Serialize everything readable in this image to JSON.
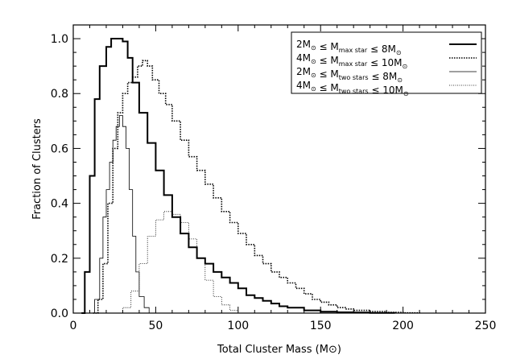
{
  "chart_data": {
    "type": "line",
    "xlabel": "Total Cluster Mass (M⊙)",
    "ylabel": "Fraction of Clusters",
    "xlim": [
      0,
      250
    ],
    "ylim": [
      0,
      1.05
    ],
    "xticks": [
      0,
      50,
      100,
      150,
      200,
      250
    ],
    "yticks": [
      0.0,
      0.2,
      0.4,
      0.6,
      0.8,
      1.0
    ],
    "xtick_labels": [
      "0",
      "50",
      "100",
      "150",
      "200",
      "250"
    ],
    "ytick_labels": [
      "0.0",
      "0.2",
      "0.4",
      "0.6",
      "0.8",
      "1.0"
    ],
    "legend_position": "top-right",
    "series": [
      {
        "name": "2M⊙ ≤ M_max star ≤ 8M⊙",
        "legend": {
          "lo": "2M",
          "sym": "⊙",
          "rel1": "≤",
          "m": "M",
          "sub": "max star",
          "rel2": "≤",
          "hi": "8M"
        },
        "style": "solid-thick",
        "x": [
          5,
          7,
          10,
          13,
          16,
          20,
          23,
          26,
          30,
          33,
          36,
          40,
          45,
          50,
          55,
          60,
          65,
          70,
          75,
          80,
          85,
          90,
          95,
          100,
          105,
          110,
          115,
          120,
          125,
          130,
          140,
          150,
          160,
          170,
          180,
          195
        ],
        "y": [
          0.0,
          0.15,
          0.5,
          0.78,
          0.9,
          0.97,
          1.0,
          1.0,
          0.99,
          0.93,
          0.84,
          0.73,
          0.62,
          0.52,
          0.43,
          0.35,
          0.29,
          0.24,
          0.2,
          0.18,
          0.15,
          0.13,
          0.11,
          0.09,
          0.065,
          0.055,
          0.045,
          0.035,
          0.025,
          0.02,
          0.01,
          0.005,
          0.003,
          0.002,
          0.001,
          0.0
        ]
      },
      {
        "name": "4M⊙ ≤ M_max star ≤ 10M⊙",
        "legend": {
          "lo": "4M",
          "sym": "⊙",
          "rel1": "≤",
          "m": "M",
          "sub": "max star",
          "rel2": "≤",
          "hi": "10M"
        },
        "style": "dotted-thick",
        "x": [
          12,
          15,
          18,
          21,
          24,
          27,
          30,
          33,
          36,
          39,
          42,
          45,
          48,
          52,
          56,
          60,
          65,
          70,
          75,
          80,
          85,
          90,
          95,
          100,
          105,
          110,
          115,
          120,
          125,
          130,
          135,
          140,
          145,
          150,
          155,
          160,
          165,
          170,
          180,
          190,
          200,
          210
        ],
        "y": [
          0.0,
          0.05,
          0.18,
          0.4,
          0.6,
          0.73,
          0.8,
          0.84,
          0.86,
          0.9,
          0.92,
          0.9,
          0.85,
          0.8,
          0.76,
          0.7,
          0.63,
          0.57,
          0.52,
          0.47,
          0.42,
          0.37,
          0.33,
          0.29,
          0.25,
          0.21,
          0.18,
          0.15,
          0.13,
          0.11,
          0.09,
          0.07,
          0.05,
          0.04,
          0.03,
          0.02,
          0.015,
          0.01,
          0.006,
          0.003,
          0.001,
          0.0
        ]
      },
      {
        "name": "2M⊙ ≤ M_two stars ≤ 8M⊙",
        "legend": {
          "lo": "2M",
          "sym": "⊙",
          "rel1": "≤",
          "m": "M",
          "sub": "two stars",
          "rel2": "≤",
          "hi": "8M"
        },
        "style": "solid-thin",
        "x": [
          10,
          13,
          16,
          18,
          20,
          22,
          24,
          26,
          28,
          30,
          32,
          34,
          36,
          38,
          40,
          43,
          46
        ],
        "y": [
          0.0,
          0.05,
          0.2,
          0.35,
          0.45,
          0.55,
          0.63,
          0.68,
          0.72,
          0.68,
          0.6,
          0.45,
          0.28,
          0.15,
          0.06,
          0.02,
          0.0
        ]
      },
      {
        "name": "4M⊙ ≤ M_two stars ≤ 10M⊙",
        "legend": {
          "lo": "4M",
          "sym": "⊙",
          "rel1": "≤",
          "m": "M",
          "sub": "two stars",
          "rel2": "≤",
          "hi": "10M"
        },
        "style": "dotted-thin",
        "x": [
          24,
          30,
          35,
          40,
          45,
          50,
          55,
          60,
          65,
          70,
          75,
          80,
          85,
          90,
          95,
          100
        ],
        "y": [
          0.0,
          0.02,
          0.08,
          0.18,
          0.28,
          0.34,
          0.37,
          0.36,
          0.33,
          0.27,
          0.2,
          0.12,
          0.06,
          0.03,
          0.01,
          0.0
        ]
      }
    ]
  }
}
